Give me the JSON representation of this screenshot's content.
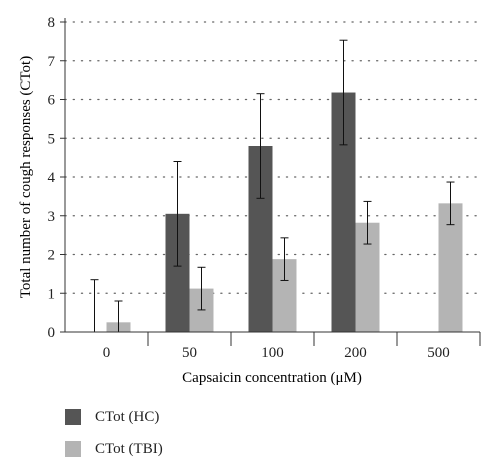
{
  "chart_data": {
    "type": "bar",
    "title": "",
    "xlabel": "Capsaicin concentration (μM)",
    "ylabel": "Total number of cough responses (CTot)",
    "ylim": [
      0,
      8
    ],
    "yticks": [
      0,
      1,
      2,
      3,
      4,
      5,
      6,
      7,
      8
    ],
    "grid": "horizontal dotted",
    "legend_position": "bottom-left",
    "categories": [
      "0",
      "50",
      "100",
      "200",
      "500"
    ],
    "series": [
      {
        "name": "CTot (HC)",
        "color": "#555555",
        "values": [
          0,
          3.05,
          4.8,
          6.18,
          null
        ],
        "error": [
          1.35,
          1.35,
          1.35,
          1.35,
          null
        ]
      },
      {
        "name": "CTot (TBI)",
        "color": "#b4b4b4",
        "values": [
          0.25,
          1.12,
          1.88,
          2.82,
          3.32
        ],
        "error": [
          0.55,
          0.55,
          0.55,
          0.55,
          0.55
        ]
      }
    ]
  }
}
